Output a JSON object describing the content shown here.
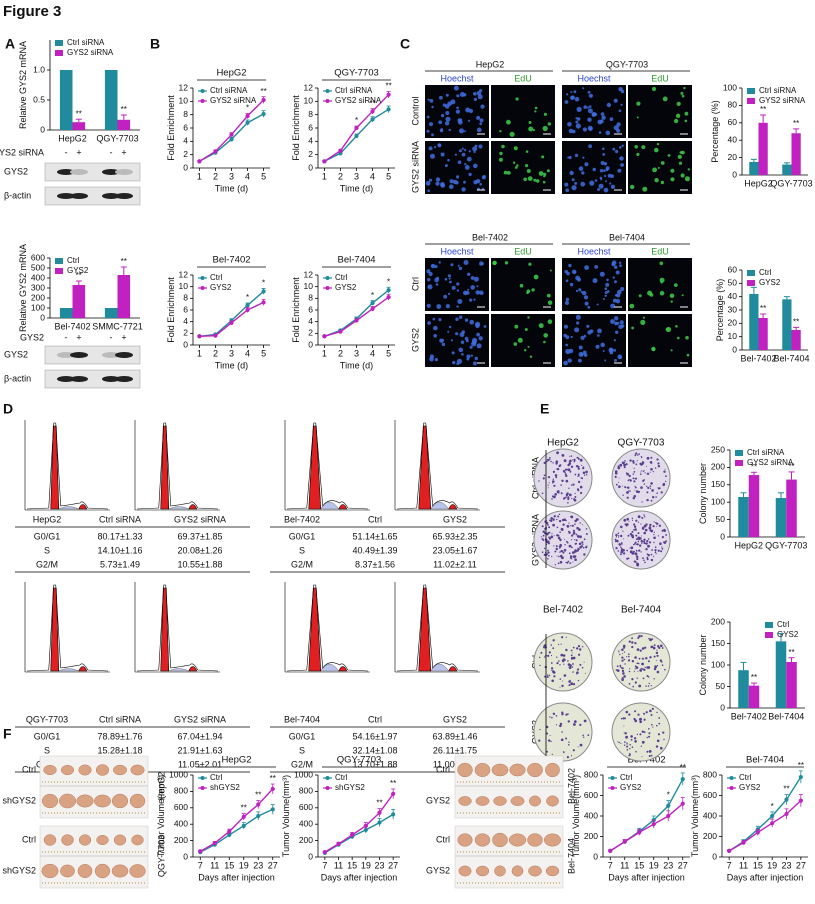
{
  "figure_title": "Figure 3",
  "panel_labels": [
    "A",
    "B",
    "C",
    "D",
    "E",
    "F"
  ],
  "panel_A": {
    "treatment_rows": [
      {
        "label": "GYS2 siRNA",
        "marks": [
          "-",
          "+",
          "-",
          "+"
        ]
      },
      {
        "label": "GYS2",
        "marks": [
          "-",
          "+",
          "-",
          "+"
        ]
      }
    ],
    "blot_labels": [
      [
        "GYS2",
        "β-actin"
      ],
      [
        "GYS2",
        "β-actin"
      ]
    ]
  },
  "panel_C": {
    "groups": [
      {
        "cell_lines": [
          "HepG2",
          "QGY-7703"
        ],
        "stains": [
          "Hoechst",
          "EdU",
          "Hoechst",
          "EdU"
        ],
        "rows": [
          "Control",
          "GYS2 siRNA"
        ]
      },
      {
        "cell_lines": [
          "Bel-7402",
          "Bel-7404"
        ],
        "stains": [
          "Hoechst",
          "EdU",
          "Hoechst",
          "EdU"
        ],
        "rows": [
          "Ctrl",
          "GYS2"
        ]
      }
    ]
  },
  "panel_D": {
    "tables": [
      {
        "header": [
          "HepG2",
          "Ctrl siRNA",
          "GYS2 siRNA"
        ],
        "rows": [
          [
            "G0/G1",
            "80.17±1.33",
            "69.37±1.85"
          ],
          [
            "S",
            "14.10±1.16",
            "20.08±1.26"
          ],
          [
            "G2/M",
            "5.73±1.49",
            "10.55±1.88"
          ]
        ]
      },
      {
        "header": [
          "Bel-7402",
          "Ctrl",
          "GYS2"
        ],
        "rows": [
          [
            "G0/G1",
            "51.14±1.65",
            "65.93±2.35"
          ],
          [
            "S",
            "40.49±1.39",
            "23.05±1.67"
          ],
          [
            "G2/M",
            "8.37±1.56",
            "11.02±2.11"
          ]
        ]
      },
      {
        "header": [
          "QGY-7703",
          "Ctrl siRNA",
          "GYS2 siRNA"
        ],
        "rows": [
          [
            "G0/G1",
            "78.89±1.76",
            "67.04±1.94"
          ],
          [
            "S",
            "15.28±1.18",
            "21.91±1.63"
          ],
          [
            "G2/M",
            "5.83±1.66",
            "11.05±2.01"
          ]
        ]
      },
      {
        "header": [
          "Bel-7404",
          "Ctrl",
          "GYS2"
        ],
        "rows": [
          [
            "G0/G1",
            "54.16±1.97",
            "63.89±1.46"
          ],
          [
            "S",
            "32.14±1.08",
            "26.11±1.75"
          ],
          [
            "G2/M",
            "13.70±1.88",
            "11.00±2.04"
          ]
        ]
      }
    ]
  },
  "panel_E": {
    "groups": [
      {
        "cell_lines": [
          "HepG2",
          "QGY-7703"
        ],
        "rows": [
          "Ctrl siRNA",
          "GYS2 siRNA"
        ]
      },
      {
        "cell_lines": [
          "Bel-7402",
          "Bel-7404"
        ],
        "rows": [
          "Ctrl",
          "GYS2"
        ]
      }
    ]
  },
  "panel_F": {
    "groups": [
      {
        "rows": [
          "Ctrl",
          "shGYS2",
          "Ctrl",
          "shGYS2"
        ],
        "cell_lines": [
          "HepG2",
          "QGY-7703"
        ]
      },
      {
        "rows": [
          "Ctrl",
          "GYS2",
          "Ctrl",
          "GYS2"
        ],
        "cell_lines": [
          "Bel-7402",
          "Bel-7404"
        ]
      }
    ]
  },
  "chart_data": [
    {
      "type": "bar",
      "ylabel": "Relative GYS2 mRNA",
      "categories": [
        "HepG2",
        "QGY-7703"
      ],
      "series": [
        {
          "name": "Ctrl siRNA",
          "color": "#1f8b9c",
          "values": [
            1,
            1
          ]
        },
        {
          "name": "GYS2 siRNA",
          "color": "#c021c0",
          "values": [
            0.13,
            0.17
          ],
          "errors": [
            0.05,
            0.08
          ],
          "significance": [
            "**",
            "**"
          ]
        }
      ],
      "ylim": [
        0,
        1.5
      ],
      "yticks": [
        0,
        0.5,
        {
          "value": 1,
          "label": "1.0"
        }
      ],
      "legend": "top-left"
    },
    {
      "type": "bar",
      "ylabel": "Relative GYS2 mRNA",
      "categories": [
        "Bel-7402",
        "SMMC-7721"
      ],
      "series": [
        {
          "name": "Ctrl",
          "color": "#1f8b9c",
          "values": [
            100,
            100
          ]
        },
        {
          "name": "GYS2",
          "color": "#c021c0",
          "values": [
            330,
            430
          ],
          "errors": [
            40,
            80
          ],
          "significance": [
            "**",
            "**"
          ]
        }
      ],
      "ylim": [
        0,
        600
      ],
      "yticks": [
        0,
        100,
        200,
        300,
        400,
        500,
        600
      ],
      "legend": "top-left"
    },
    {
      "type": "line",
      "title": "HepG2",
      "xlabel": "Time (d)",
      "ylabel": "Fold Enrichment",
      "x": [
        1,
        2,
        3,
        4,
        5
      ],
      "xlim": [
        0.6,
        5.4
      ],
      "xticks": [
        1,
        2,
        3,
        4,
        5
      ],
      "ylim": [
        0,
        12
      ],
      "yticks": [
        0,
        2,
        4,
        6,
        8,
        10,
        12
      ],
      "legend": "top-left",
      "series": [
        {
          "name": "Ctrl siRNA",
          "color": "#1f8b9c",
          "values": [
            1,
            2.3,
            4.3,
            6.8,
            8.1
          ],
          "errors": [
            0.1,
            0.2,
            0.3,
            0.4,
            0.5
          ]
        },
        {
          "name": "GYS2 siRNA",
          "color": "#c021c0",
          "values": [
            1,
            2.5,
            5,
            7.8,
            10.2
          ],
          "errors": [
            0.1,
            0.2,
            0.3,
            0.4,
            0.5
          ],
          "significance": [
            null,
            null,
            null,
            "*",
            "**"
          ]
        }
      ]
    },
    {
      "type": "line",
      "title": "QGY-7703",
      "xlabel": "Time (d)",
      "ylabel": "Fold Enrichment",
      "x": [
        1,
        2,
        3,
        4,
        5
      ],
      "xlim": [
        0.6,
        5.4
      ],
      "xticks": [
        1,
        2,
        3,
        4,
        5
      ],
      "ylim": [
        0,
        12
      ],
      "yticks": [
        0,
        2,
        4,
        6,
        8,
        10,
        12
      ],
      "legend": "top-left",
      "series": [
        {
          "name": "Ctrl siRNA",
          "color": "#1f8b9c",
          "values": [
            1,
            2.2,
            4.8,
            7.3,
            8.8
          ],
          "errors": [
            0.1,
            0.2,
            0.3,
            0.4,
            0.5
          ]
        },
        {
          "name": "GYS2 siRNA",
          "color": "#c021c0",
          "values": [
            1,
            2.6,
            6,
            8.5,
            11
          ],
          "errors": [
            0.1,
            0.2,
            0.3,
            0.4,
            0.5
          ],
          "significance": [
            null,
            null,
            "*",
            "**",
            "**"
          ]
        }
      ]
    },
    {
      "type": "line",
      "title": "Bel-7402",
      "xlabel": "Time (d)",
      "ylabel": "Fold Enrichment",
      "x": [
        1,
        2,
        3,
        4,
        5
      ],
      "xlim": [
        0.6,
        5.4
      ],
      "xticks": [
        1,
        2,
        3,
        4,
        5
      ],
      "ylim": [
        0,
        12
      ],
      "yticks": [
        0,
        2,
        4,
        6,
        8,
        10,
        12
      ],
      "legend": "top-left",
      "series": [
        {
          "name": "Ctrl",
          "color": "#1f8b9c",
          "values": [
            1.5,
            1.8,
            4.2,
            6.8,
            9.2
          ],
          "errors": [
            0.1,
            0.2,
            0.3,
            0.4,
            0.5
          ]
        },
        {
          "name": "GYS2",
          "color": "#c021c0",
          "values": [
            1.5,
            1.6,
            3.8,
            6,
            7.3
          ],
          "errors": [
            0.1,
            0.2,
            0.3,
            0.4,
            0.5
          ],
          "significance": [
            null,
            null,
            null,
            "*",
            "*"
          ]
        }
      ]
    },
    {
      "type": "line",
      "title": "Bel-7404",
      "xlabel": "Time (d)",
      "ylabel": "Fold Enrichment",
      "x": [
        1,
        2,
        3,
        4,
        5
      ],
      "xlim": [
        0.6,
        5.4
      ],
      "xticks": [
        1,
        2,
        3,
        4,
        5
      ],
      "ylim": [
        0,
        12
      ],
      "yticks": [
        0,
        2,
        4,
        6,
        8,
        10,
        12
      ],
      "legend": "top-left",
      "series": [
        {
          "name": "Ctrl",
          "color": "#1f8b9c",
          "values": [
            1.5,
            2.5,
            4.5,
            7.2,
            9.4
          ],
          "errors": [
            0.1,
            0.2,
            0.3,
            0.4,
            0.5
          ]
        },
        {
          "name": "GYS2",
          "color": "#c021c0",
          "values": [
            1.5,
            2.3,
            4.2,
            6.2,
            8.2
          ],
          "errors": [
            0.1,
            0.2,
            0.3,
            0.4,
            0.5
          ],
          "significance": [
            null,
            null,
            null,
            "*",
            "*"
          ]
        }
      ]
    },
    {
      "type": "bar",
      "ylabel": "Percentage (%)",
      "categories": [
        "HepG2",
        "QGY-7703"
      ],
      "series": [
        {
          "name": "Ctrl siRNA",
          "color": "#1f8b9c",
          "values": [
            15,
            12
          ],
          "errors": [
            3,
            2
          ]
        },
        {
          "name": "GYS2 siRNA",
          "color": "#c021c0",
          "values": [
            60,
            48
          ],
          "errors": [
            9,
            5
          ],
          "significance": [
            "**",
            "**"
          ]
        }
      ],
      "ylim": [
        0,
        100
      ],
      "yticks": [
        0,
        20,
        40,
        60,
        80,
        100
      ],
      "legend": "top-left"
    },
    {
      "type": "bar",
      "ylabel": "Percentage (%)",
      "categories": [
        "Bel-7402",
        "Bel-7404"
      ],
      "series": [
        {
          "name": "Ctrl",
          "color": "#1f8b9c",
          "values": [
            42,
            38
          ],
          "errors": [
            5,
            2
          ]
        },
        {
          "name": "GYS2",
          "color": "#c021c0",
          "values": [
            24,
            15
          ],
          "errors": [
            3,
            2
          ],
          "significance": [
            "**",
            "**"
          ]
        }
      ],
      "ylim": [
        0,
        60
      ],
      "yticks": [
        0,
        10,
        20,
        30,
        40,
        50,
        60
      ],
      "legend": "top-left"
    },
    {
      "type": "bar",
      "ylabel": "Colony number",
      "categories": [
        "HepG2",
        "QGY-7703"
      ],
      "series": [
        {
          "name": "Ctrl siRNA",
          "color": "#1f8b9c",
          "values": [
            115,
            112
          ],
          "errors": [
            12,
            15
          ]
        },
        {
          "name": "GYS2 siRNA",
          "color": "#c021c0",
          "values": [
            178,
            165
          ],
          "errors": [
            8,
            22
          ],
          "significance": [
            "**",
            "**"
          ]
        }
      ],
      "ylim": [
        0,
        250
      ],
      "yticks": [
        0,
        50,
        100,
        150,
        200,
        250
      ],
      "legend": "top-left"
    },
    {
      "type": "bar",
      "ylabel": "Colony number",
      "categories": [
        "Bel-7402",
        "Bel-7404"
      ],
      "series": [
        {
          "name": "Ctrl",
          "color": "#1f8b9c",
          "values": [
            88,
            155
          ],
          "errors": [
            18,
            18
          ]
        },
        {
          "name": "GYS2",
          "color": "#c021c0",
          "values": [
            52,
            107
          ],
          "errors": [
            6,
            10
          ],
          "significance": [
            "**",
            "**"
          ]
        }
      ],
      "ylim": [
        0,
        200
      ],
      "yticks": [
        0,
        50,
        100,
        150,
        200
      ],
      "legend": "top-right"
    },
    {
      "type": "line",
      "title": "HepG2",
      "xlabel": "Days after injection",
      "ylabel": "Tumor Volume(mm³)",
      "x": [
        7,
        11,
        15,
        19,
        23,
        27
      ],
      "xlim": [
        5,
        29
      ],
      "xticks": [
        7,
        11,
        15,
        19,
        23,
        27
      ],
      "ylim": [
        0,
        1000
      ],
      "yticks": [
        0,
        200,
        400,
        600,
        800,
        1000
      ],
      "legend": "top-left",
      "series": [
        {
          "name": "Ctrl",
          "color": "#1f8b9c",
          "values": [
            60,
            150,
            270,
            380,
            500,
            580
          ],
          "errors": [
            10,
            20,
            30,
            40,
            50,
            60
          ]
        },
        {
          "name": "shGYS2",
          "color": "#c021c0",
          "values": [
            70,
            170,
            310,
            490,
            640,
            830
          ],
          "errors": [
            10,
            20,
            30,
            40,
            50,
            60
          ],
          "significance": [
            null,
            null,
            null,
            "**",
            "**",
            "**"
          ]
        }
      ]
    },
    {
      "type": "line",
      "title": "QGY-7703",
      "xlabel": "Days after injection",
      "ylabel": "Tumor Volume(mm³)",
      "x": [
        7,
        11,
        15,
        19,
        23,
        27
      ],
      "xlim": [
        5,
        29
      ],
      "xticks": [
        7,
        11,
        15,
        19,
        23,
        27
      ],
      "ylim": [
        0,
        1000
      ],
      "yticks": [
        0,
        200,
        400,
        600,
        800,
        1000
      ],
      "legend": "top-left",
      "series": [
        {
          "name": "Ctrl",
          "color": "#1f8b9c",
          "values": [
            50,
            150,
            250,
            330,
            420,
            520
          ],
          "errors": [
            10,
            20,
            30,
            40,
            50,
            60
          ]
        },
        {
          "name": "shGYS2",
          "color": "#c021c0",
          "values": [
            60,
            160,
            270,
            380,
            540,
            770
          ],
          "errors": [
            10,
            20,
            30,
            40,
            50,
            60
          ],
          "significance": [
            null,
            null,
            null,
            null,
            "**",
            "**"
          ]
        }
      ]
    },
    {
      "type": "line",
      "title": "Bel-7402",
      "xlabel": "Days after injection",
      "ylabel": "Tumor Volume(mm³)",
      "x": [
        7,
        11,
        15,
        19,
        23,
        27
      ],
      "xlim": [
        5,
        29
      ],
      "xticks": [
        7,
        11,
        15,
        19,
        23,
        27
      ],
      "ylim": [
        0,
        800
      ],
      "yticks": [
        0,
        200,
        400,
        600,
        800
      ],
      "legend": "top-left",
      "series": [
        {
          "name": "Ctrl",
          "color": "#1f8b9c",
          "values": [
            60,
            150,
            250,
            360,
            500,
            760
          ],
          "errors": [
            10,
            20,
            30,
            40,
            50,
            60
          ]
        },
        {
          "name": "GYS2",
          "color": "#c021c0",
          "values": [
            60,
            150,
            240,
            320,
            400,
            520
          ],
          "errors": [
            10,
            20,
            30,
            40,
            50,
            60
          ],
          "significance": [
            null,
            null,
            null,
            null,
            "*",
            "**"
          ]
        }
      ]
    },
    {
      "type": "line",
      "title": "Bel-7404",
      "xlabel": "Days after injection",
      "ylabel": "Tumor Volume(mm³)",
      "x": [
        7,
        11,
        15,
        19,
        23,
        27
      ],
      "xlim": [
        5,
        29
      ],
      "xticks": [
        7,
        11,
        15,
        19,
        23,
        27
      ],
      "ylim": [
        0,
        800
      ],
      "yticks": [
        0,
        200,
        400,
        600,
        800
      ],
      "legend": "top-left",
      "series": [
        {
          "name": "Ctrl",
          "color": "#1f8b9c",
          "values": [
            60,
            150,
            270,
            400,
            560,
            780
          ],
          "errors": [
            10,
            20,
            30,
            40,
            50,
            60
          ]
        },
        {
          "name": "GYS2",
          "color": "#c021c0",
          "values": [
            60,
            140,
            240,
            330,
            420,
            550
          ],
          "errors": [
            10,
            20,
            30,
            40,
            50,
            60
          ],
          "significance": [
            null,
            null,
            null,
            "*",
            "**",
            "**"
          ]
        }
      ]
    }
  ]
}
